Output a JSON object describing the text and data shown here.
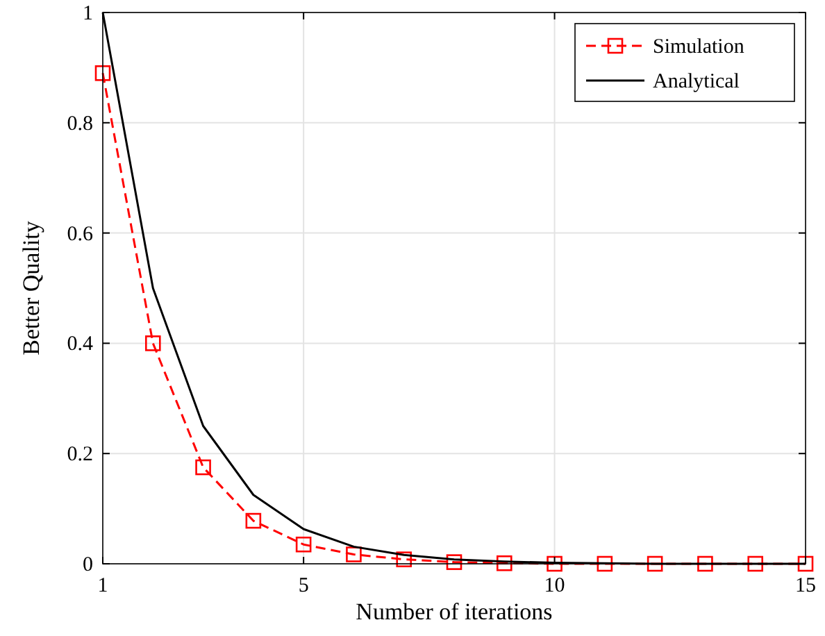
{
  "chart_data": {
    "type": "line",
    "xlabel": "Number of iterations",
    "ylabel": "Better Quality",
    "x": [
      1,
      2,
      3,
      4,
      5,
      6,
      7,
      8,
      9,
      10,
      11,
      12,
      13,
      14,
      15
    ],
    "xlim": [
      1,
      15
    ],
    "xticks": [
      1,
      5,
      10,
      15
    ],
    "ylim": [
      0,
      1
    ],
    "yticks": [
      0,
      0.2,
      0.4,
      0.6,
      0.8,
      1
    ],
    "grid": true,
    "legend": "top right",
    "series": [
      {
        "name": "Simulation",
        "color": "#ff0000",
        "marker": "square",
        "line_style": "dashed",
        "values": [
          0.89,
          0.4,
          0.175,
          0.078,
          0.035,
          0.017,
          0.008,
          0.003,
          0.001,
          0,
          0,
          0,
          0,
          0,
          0
        ]
      },
      {
        "name": "Analytical",
        "color": "#000000",
        "marker": "none",
        "line_style": "solid",
        "values": [
          1,
          0.5,
          0.25,
          0.125,
          0.063,
          0.031,
          0.016,
          0.008,
          0.004,
          0.002,
          0.001,
          0,
          0,
          0,
          0
        ]
      }
    ]
  }
}
